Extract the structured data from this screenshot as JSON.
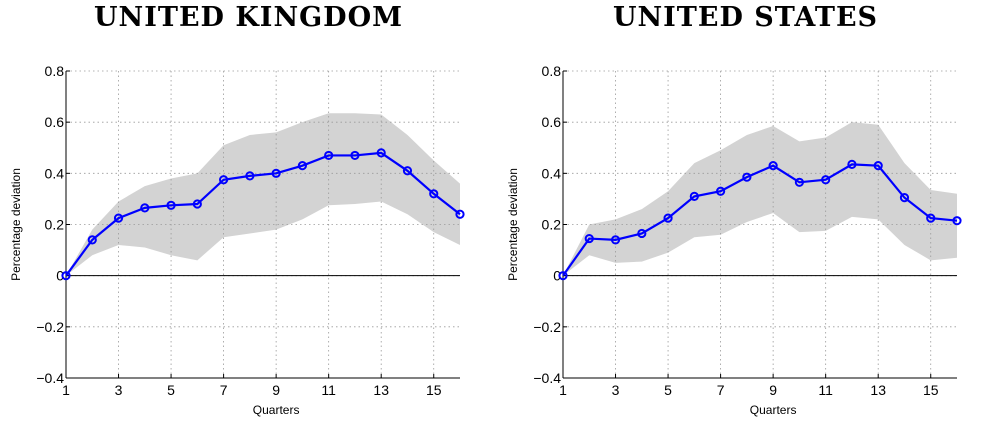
{
  "chart_data": [
    {
      "type": "line",
      "title": "UNITED KINGDOM",
      "xlabel": "Quarters",
      "ylabel": "Percentage deviation",
      "xlim": [
        1,
        16
      ],
      "ylim": [
        -0.4,
        0.8
      ],
      "xticks": [
        1,
        3,
        5,
        7,
        9,
        11,
        13,
        15
      ],
      "xtick_labels": [
        "1",
        "3",
        "5",
        "7",
        "9",
        "11",
        "13",
        "15"
      ],
      "yticks": [
        -0.4,
        -0.2,
        0,
        0.2,
        0.4,
        0.6,
        0.8
      ],
      "ytick_labels": [
        "−0.4",
        "−0.2",
        "0",
        "0.2",
        "0.4",
        "0.6",
        "0.8"
      ],
      "grid": true,
      "x": [
        1,
        2,
        3,
        4,
        5,
        6,
        7,
        8,
        9,
        10,
        11,
        12,
        13,
        14,
        15,
        16
      ],
      "series": [
        {
          "values": [
            0,
            0.14,
            0.225,
            0.265,
            0.275,
            0.28,
            0.375,
            0.39,
            0.4,
            0.43,
            0.47,
            0.47,
            0.48,
            0.41,
            0.32,
            0.24
          ],
          "lower": [
            0,
            0.08,
            0.12,
            0.11,
            0.08,
            0.06,
            0.15,
            0.165,
            0.18,
            0.22,
            0.275,
            0.28,
            0.29,
            0.24,
            0.17,
            0.12
          ],
          "upper": [
            0,
            0.18,
            0.29,
            0.35,
            0.38,
            0.4,
            0.51,
            0.55,
            0.56,
            0.6,
            0.635,
            0.635,
            0.63,
            0.55,
            0.45,
            0.36
          ]
        }
      ],
      "colors": {
        "line": "#0000ff",
        "band": "#d3d3d3",
        "zero": "#000000",
        "grid": "#9a9a9a"
      }
    },
    {
      "type": "line",
      "title": "UNITED STATES",
      "xlabel": "Quarters",
      "ylabel": "Percentage deviation",
      "xlim": [
        1,
        16
      ],
      "ylim": [
        -0.4,
        0.8
      ],
      "xticks": [
        1,
        3,
        5,
        7,
        9,
        11,
        13,
        15
      ],
      "xtick_labels": [
        "1",
        "3",
        "5",
        "7",
        "9",
        "11",
        "13",
        "15"
      ],
      "yticks": [
        -0.4,
        -0.2,
        0,
        0.2,
        0.4,
        0.6,
        0.8
      ],
      "ytick_labels": [
        "−0.4",
        "−0.2",
        "0",
        "0.2",
        "0.4",
        "0.6",
        "0.8"
      ],
      "grid": true,
      "x": [
        1,
        2,
        3,
        4,
        5,
        6,
        7,
        8,
        9,
        10,
        11,
        12,
        13,
        14,
        15,
        16
      ],
      "series": [
        {
          "values": [
            0,
            0.145,
            0.14,
            0.165,
            0.225,
            0.31,
            0.33,
            0.385,
            0.43,
            0.365,
            0.375,
            0.435,
            0.43,
            0.305,
            0.225,
            0.215
          ],
          "lower": [
            0,
            0.08,
            0.05,
            0.055,
            0.09,
            0.15,
            0.16,
            0.21,
            0.245,
            0.17,
            0.175,
            0.23,
            0.22,
            0.12,
            0.06,
            0.07
          ],
          "upper": [
            0,
            0.2,
            0.22,
            0.26,
            0.33,
            0.44,
            0.49,
            0.55,
            0.585,
            0.525,
            0.54,
            0.6,
            0.59,
            0.44,
            0.335,
            0.32
          ]
        }
      ],
      "colors": {
        "line": "#0000ff",
        "band": "#d3d3d3",
        "zero": "#000000",
        "grid": "#9a9a9a"
      }
    }
  ]
}
